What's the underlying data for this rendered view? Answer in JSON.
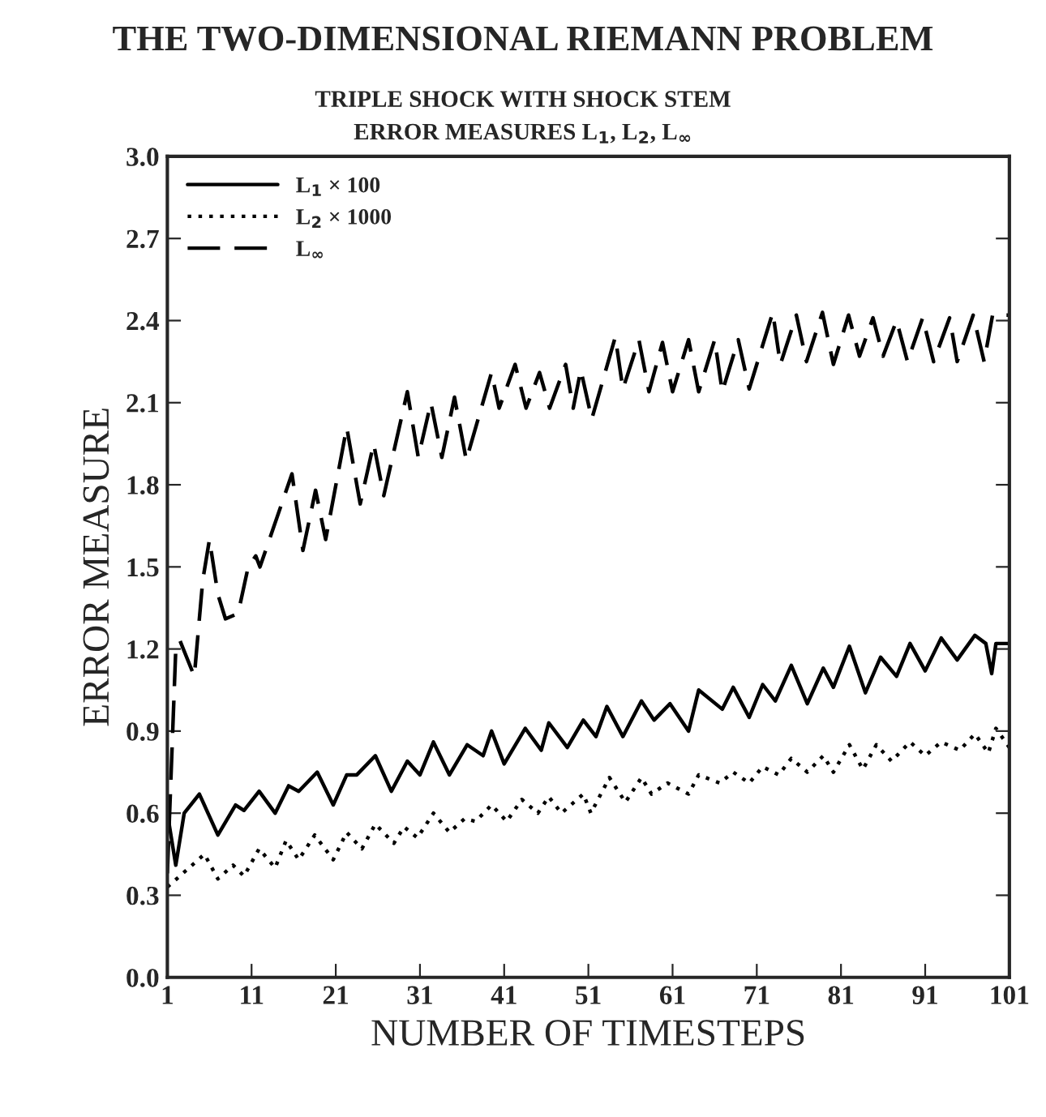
{
  "chart_data": {
    "type": "line",
    "title": "THE TWO-DIMENSIONAL RIEMANN PROBLEM",
    "subtitle": "TRIPLE SHOCK WITH SHOCK STEM\nERROR MEASURES L$_{1}$, L$_{2}$, L$_{∞}$",
    "xlabel": "NUMBER OF TIMESTEPS",
    "ylabel": "ERROR MEASURE",
    "xlim": [
      1,
      101
    ],
    "xticks": [
      1,
      11,
      21,
      31,
      41,
      51,
      61,
      71,
      81,
      91,
      101
    ],
    "ylim": [
      0,
      3.0
    ],
    "yticks": [
      {
        "value": 0,
        "label": "0.0"
      },
      0.3,
      0.6,
      0.9,
      1.2,
      1.5,
      1.8,
      2.1,
      2.4,
      2.7,
      {
        "value": 3,
        "label": "3.0"
      }
    ],
    "grid": false,
    "legend": "top left",
    "marker": "none",
    "series": [
      {
        "name": "L$_{1}$ × 100",
        "color": "#000000",
        "line_style": "solid",
        "x": [
          1,
          2,
          3,
          4.8,
          7.0,
          9.1,
          10.1,
          11.9,
          13.8,
          15.4,
          16.6,
          18.8,
          20.7,
          22.3,
          23.5,
          25.7,
          27.6,
          29.5,
          31.0,
          32.6,
          34.5,
          36.6,
          38.5,
          39.5,
          41.0,
          43.5,
          45.4,
          46.3,
          48.5,
          50.4,
          51.9,
          53.2,
          55.1,
          57.3,
          58.8,
          60.7,
          62.9,
          64.1,
          66.9,
          68.2,
          70.1,
          71.7,
          73.2,
          75.1,
          77.0,
          78.9,
          80.1,
          82.0,
          83.9,
          85.7,
          87.6,
          89.2,
          91.0,
          92.9,
          94.8,
          96.9,
          98.2,
          98.9,
          99.4,
          101
        ],
        "values": [
          0.6,
          0.41,
          0.6,
          0.67,
          0.52,
          0.63,
          0.61,
          0.68,
          0.6,
          0.7,
          0.68,
          0.75,
          0.63,
          0.74,
          0.74,
          0.81,
          0.68,
          0.79,
          0.74,
          0.86,
          0.74,
          0.85,
          0.81,
          0.9,
          0.78,
          0.91,
          0.83,
          0.93,
          0.84,
          0.94,
          0.88,
          0.99,
          0.88,
          1.01,
          0.94,
          1.0,
          0.9,
          1.05,
          0.98,
          1.06,
          0.95,
          1.07,
          1.01,
          1.14,
          1.0,
          1.13,
          1.06,
          1.21,
          1.04,
          1.17,
          1.1,
          1.22,
          1.12,
          1.24,
          1.16,
          1.25,
          1.22,
          1.11,
          1.22,
          1.22
        ]
      },
      {
        "name": "L$_{2}$ × 1000",
        "color": "#000000",
        "line_style": "dotted",
        "x": [
          1,
          5.4,
          7.0,
          8.8,
          10.1,
          11.9,
          13.8,
          15.1,
          16.6,
          18.5,
          20.7,
          22.3,
          24.1,
          25.7,
          27.9,
          29.1,
          30.7,
          32.6,
          34.5,
          36.3,
          37.6,
          39.5,
          41.3,
          43.1,
          45.0,
          46.3,
          47.8,
          50.4,
          51.3,
          53.5,
          55.4,
          57.3,
          58.5,
          60.4,
          62.9,
          64.1,
          66.6,
          68.2,
          70.1,
          71.7,
          73.6,
          75.1,
          77.0,
          78.9,
          80.1,
          82.0,
          83.6,
          85.2,
          87.0,
          89.2,
          91.0,
          92.9,
          95.1,
          96.9,
          98.5,
          99.4,
          101
        ],
        "values": [
          0.33,
          0.45,
          0.36,
          0.41,
          0.37,
          0.47,
          0.4,
          0.5,
          0.43,
          0.52,
          0.43,
          0.53,
          0.47,
          0.56,
          0.49,
          0.55,
          0.51,
          0.6,
          0.53,
          0.58,
          0.57,
          0.63,
          0.57,
          0.65,
          0.6,
          0.66,
          0.6,
          0.67,
          0.6,
          0.73,
          0.64,
          0.73,
          0.67,
          0.71,
          0.67,
          0.74,
          0.71,
          0.75,
          0.71,
          0.77,
          0.74,
          0.8,
          0.75,
          0.81,
          0.75,
          0.85,
          0.76,
          0.85,
          0.79,
          0.86,
          0.81,
          0.86,
          0.83,
          0.89,
          0.82,
          0.91,
          0.84
        ]
      },
      {
        "name": "L$_{∞}$",
        "color": "#000000",
        "line_style": "dashed",
        "x": [
          1,
          2,
          2.5,
          4.2,
          5.2,
          6.0,
          7.0,
          7.9,
          9.4,
          10.6,
          11.5,
          12.0,
          15.8,
          17.1,
          18.6,
          19.8,
          22.3,
          23.9,
          25.5,
          26.7,
          29.5,
          30.8,
          32.3,
          33.6,
          35.1,
          36.5,
          39.5,
          40.4,
          42.3,
          43.6,
          45.2,
          46.4,
          48.3,
          49.2,
          50.1,
          51.4,
          54.2,
          55.1,
          57.0,
          58.2,
          59.8,
          61.0,
          62.9,
          64.1,
          66.0,
          66.9,
          68.8,
          70.1,
          72.9,
          73.8,
          75.7,
          76.9,
          78.8,
          80.1,
          81.9,
          83.2,
          84.8,
          86.0,
          87.6,
          88.9,
          90.7,
          92.0,
          93.9,
          94.8,
          96.7,
          98.0,
          99.0,
          101
        ],
        "values": [
          0.38,
          1.2,
          1.23,
          1.1,
          1.45,
          1.6,
          1.4,
          1.31,
          1.33,
          1.5,
          1.54,
          1.5,
          1.84,
          1.56,
          1.78,
          1.6,
          2.01,
          1.73,
          1.95,
          1.76,
          2.14,
          1.9,
          2.1,
          1.9,
          2.12,
          1.89,
          2.21,
          2.08,
          2.24,
          2.08,
          2.21,
          2.08,
          2.24,
          2.08,
          2.22,
          2.04,
          2.34,
          2.15,
          2.33,
          2.14,
          2.32,
          2.14,
          2.33,
          2.14,
          2.33,
          2.14,
          2.33,
          2.15,
          2.43,
          2.24,
          2.42,
          2.25,
          2.43,
          2.24,
          2.42,
          2.27,
          2.41,
          2.27,
          2.4,
          2.25,
          2.41,
          2.25,
          2.41,
          2.25,
          2.42,
          2.25,
          2.42,
          2.42
        ]
      }
    ]
  }
}
